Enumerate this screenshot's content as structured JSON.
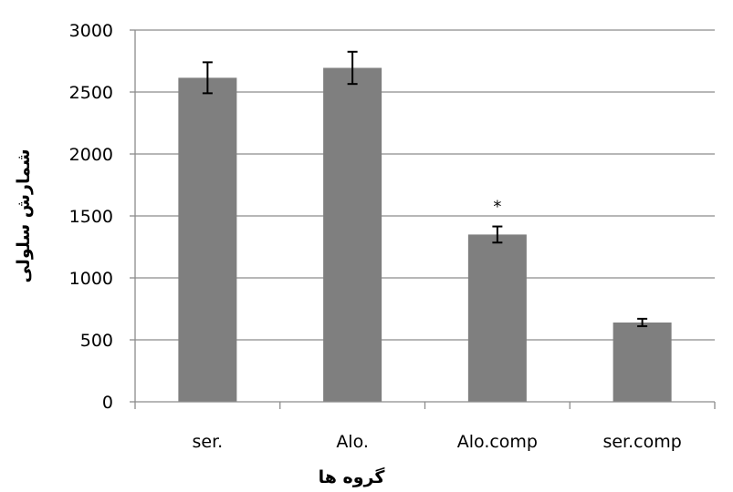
{
  "chart_data": {
    "type": "bar",
    "categories": [
      "ser.",
      "Alo.",
      "Alo.comp",
      "ser.comp"
    ],
    "values": [
      2615,
      2695,
      1350,
      640
    ],
    "error": [
      125,
      130,
      65,
      30
    ],
    "annotations": [
      {
        "category": "Alo.comp",
        "text": "*"
      }
    ],
    "xlabel": "گروه ها",
    "ylabel": "شمارش سلولی",
    "ylim": [
      0,
      3000
    ],
    "yticks": [
      0,
      500,
      1000,
      1500,
      2000,
      2500,
      3000
    ],
    "grid": true,
    "legend": "none",
    "colors": {
      "bar": "#7f7f7f",
      "gridline": "#8c8c8c",
      "axis": "#8c8c8c",
      "errorbar": "#000000"
    }
  }
}
